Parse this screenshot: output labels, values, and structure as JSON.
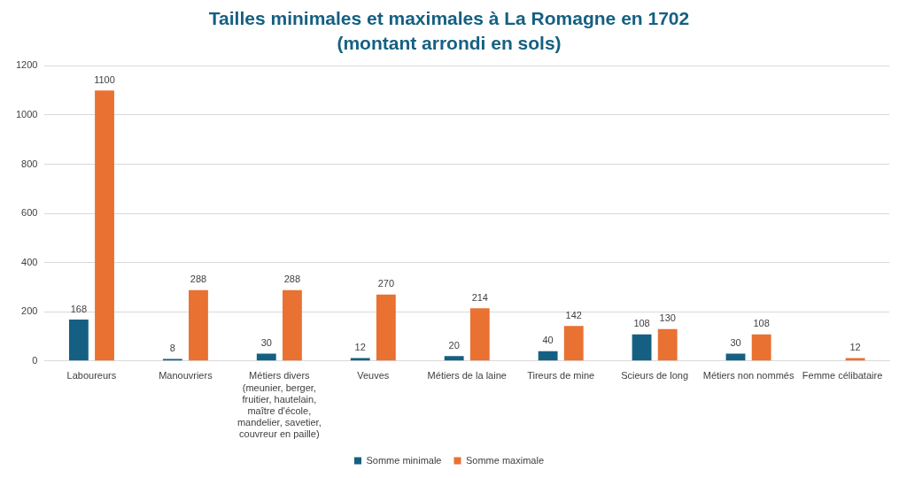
{
  "chart_data": {
    "type": "bar",
    "title": "Tailles minimales et maximales à La Romagne en 1702",
    "subtitle": "(montant arrondi en sols)",
    "categories": [
      "Laboureurs",
      "Manouvriers",
      "Métiers divers (meunier, berger, fruitier, hautelain, maître d'école, mandelier, savetier, couvreur en paille)",
      "Veuves",
      "Métiers de la laine",
      "Tireurs de mine",
      "Scieurs de long",
      "Métiers non nommés",
      "Femme célibataire"
    ],
    "series": [
      {
        "name": "Somme minimale",
        "color": "#156082",
        "values": [
          168,
          8,
          30,
          12,
          20,
          40,
          108,
          30,
          null
        ]
      },
      {
        "name": "Somme maximale",
        "color": "#e97132",
        "values": [
          1100,
          288,
          288,
          270,
          214,
          142,
          130,
          108,
          12
        ]
      }
    ],
    "ylim": [
      0,
      1200
    ],
    "yticks": [
      0,
      200,
      400,
      600,
      800,
      1000,
      1200
    ],
    "grid": true,
    "legend": "bottom",
    "data_labels": true
  }
}
